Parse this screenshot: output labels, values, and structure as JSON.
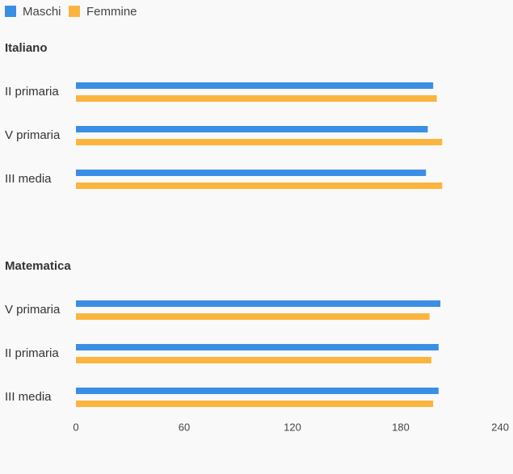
{
  "legend": [
    {
      "name": "Maschi",
      "color": "#3a8ee6"
    },
    {
      "name": "Femmine",
      "color": "#fbb53f"
    }
  ],
  "chart_data": {
    "type": "bar",
    "orientation": "horizontal",
    "xlim": [
      0,
      240
    ],
    "xticks": [
      "0",
      "60",
      "120",
      "180",
      "240"
    ],
    "grid": false,
    "legend_position": "top-left",
    "groups": [
      {
        "title": "Italiano",
        "categories": [
          "II primaria",
          "V primaria",
          "III media"
        ],
        "series": [
          {
            "name": "Maschi",
            "values": [
              198,
              195,
              194
            ]
          },
          {
            "name": "Femmine",
            "values": [
              200,
              203,
              203
            ]
          }
        ]
      },
      {
        "title": "Matematica",
        "categories": [
          "V primaria",
          "II primaria",
          "III media"
        ],
        "series": [
          {
            "name": "Maschi",
            "values": [
              202,
              201,
              201
            ]
          },
          {
            "name": "Femmine",
            "values": [
              196,
              197,
              198
            ]
          }
        ]
      }
    ]
  }
}
